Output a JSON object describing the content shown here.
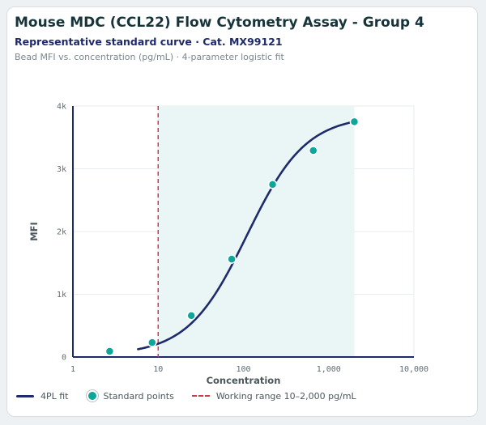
{
  "header": {
    "title": "Mouse MDC (CCL22) Flow Cytometry Assay - Group 4",
    "subtitle": "Representative standard curve · Cat. MX99121",
    "caption": "Bead MFI vs. concentration (pg/mL) · 4-parameter logistic fit"
  },
  "legend": {
    "fit_label": "4PL fit",
    "points_label": "Standard points",
    "range_label": "Working range 10–2,000 pg/mL"
  },
  "colors": {
    "fit": "#1f2a6b",
    "points": "#0ea59a",
    "range_line": "#cc3b4a",
    "range_fill": "#e9f6f5"
  },
  "chart_data": {
    "type": "scatter",
    "xlabel": "Concentration",
    "ylabel": "MFI",
    "x_scale": "log",
    "xlim": [
      1,
      10000
    ],
    "ylim": [
      0,
      4000
    ],
    "x_ticks": [
      1,
      10,
      100,
      1000,
      10000
    ],
    "x_tick_labels": [
      "1",
      "10",
      "100",
      "1,000",
      "10,000"
    ],
    "y_ticks": [
      0,
      1000,
      2000,
      3000,
      4000
    ],
    "y_tick_labels": [
      "0",
      "1k",
      "2k",
      "3k",
      "4k"
    ],
    "grid": true,
    "legend_position": "bottom-left",
    "working_range": [
      10,
      2000
    ],
    "lower_limit_line": 10,
    "series": [
      {
        "name": "Standard points",
        "x": [
          2.7,
          8.5,
          24.5,
          73,
          220,
          660,
          2000
        ],
        "y": [
          90,
          230,
          660,
          1560,
          2750,
          3290,
          3750
        ]
      },
      {
        "name": "4PL fit",
        "model": {
          "bottom": 30,
          "top": 3850,
          "ec50": 110,
          "hill": 1.25
        },
        "x_range": [
          5.8,
          2000
        ]
      }
    ]
  }
}
